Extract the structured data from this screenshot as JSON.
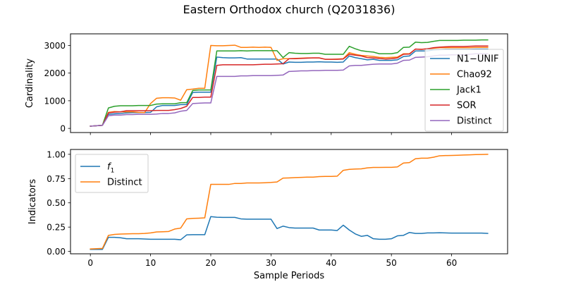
{
  "figure": {
    "title": "Eastern Orthodox church (Q2031836)"
  },
  "colors": {
    "blue": "#1f77b4",
    "orange": "#ff7f0e",
    "green": "#2ca02c",
    "red": "#d62728",
    "purple": "#9467bd"
  },
  "chart_data": [
    {
      "type": "line",
      "ylabel": "Cardinality",
      "xlabel": "",
      "xlim": [
        -3.3,
        69.3
      ],
      "ylim": [
        -150,
        3420
      ],
      "yticks": [
        0,
        1000,
        2000,
        3000
      ],
      "ytick_labels": [
        "0",
        "1000",
        "2000",
        "3000"
      ],
      "xticks": [
        0,
        10,
        20,
        30,
        40,
        50,
        60
      ],
      "show_xtick_labels": false,
      "legend_position": "right",
      "series": [
        {
          "name": "N1−UNIF",
          "color": "#1f77b4",
          "x": [
            0,
            2,
            3,
            4,
            5,
            6,
            7,
            8,
            9,
            10,
            11,
            12,
            13,
            14,
            15,
            16,
            17,
            18,
            19,
            20,
            21,
            22,
            23,
            24,
            25,
            26,
            27,
            28,
            29,
            30,
            31,
            32,
            33,
            34,
            35,
            36,
            37,
            38,
            39,
            40,
            41,
            42,
            43,
            44,
            45,
            46,
            47,
            48,
            49,
            50,
            51,
            52,
            53,
            54,
            55,
            56,
            57,
            58,
            59,
            60,
            61,
            62,
            63,
            64,
            65,
            66
          ],
          "y": [
            80,
            110,
            510,
            530,
            540,
            560,
            570,
            570,
            575,
            580,
            780,
            830,
            830,
            830,
            860,
            860,
            1300,
            1310,
            1310,
            1310,
            2580,
            2560,
            2550,
            2550,
            2560,
            2510,
            2510,
            2510,
            2510,
            2510,
            2510,
            2330,
            2400,
            2390,
            2390,
            2400,
            2400,
            2410,
            2400,
            2400,
            2390,
            2400,
            2620,
            2560,
            2520,
            2480,
            2500,
            2460,
            2460,
            2460,
            2480,
            2600,
            2620,
            2800,
            2800,
            2800,
            2840,
            2850,
            2860,
            2860,
            2860,
            2860,
            2860,
            2870,
            2870,
            2870
          ]
        },
        {
          "name": "Chao92",
          "color": "#ff7f0e",
          "x": [
            0,
            2,
            3,
            4,
            5,
            6,
            7,
            8,
            9,
            10,
            11,
            12,
            13,
            14,
            15,
            16,
            17,
            18,
            19,
            20,
            21,
            22,
            23,
            24,
            25,
            26,
            27,
            28,
            29,
            30,
            31,
            32,
            33,
            34,
            35,
            36,
            37,
            38,
            39,
            40,
            41,
            42,
            43,
            44,
            45,
            46,
            47,
            48,
            49,
            50,
            51,
            52,
            53,
            54,
            55,
            56,
            57,
            58,
            59,
            60,
            61,
            62,
            63,
            64,
            65,
            66
          ],
          "y": [
            80,
            110,
            580,
            610,
            600,
            600,
            600,
            580,
            570,
            900,
            1090,
            1110,
            1110,
            1100,
            1020,
            1400,
            1420,
            1450,
            1450,
            3000,
            2990,
            2990,
            3000,
            3010,
            2930,
            2930,
            2940,
            2930,
            2940,
            2930,
            2460,
            2520,
            2520,
            2530,
            2540,
            2550,
            2550,
            2550,
            2500,
            2500,
            2510,
            2520,
            2740,
            2680,
            2640,
            2620,
            2600,
            2570,
            2560,
            2570,
            2580,
            2700,
            2700,
            2870,
            2860,
            2880,
            2900,
            2920,
            2920,
            2920,
            2920,
            2920,
            2920,
            2930,
            2930,
            2930
          ]
        },
        {
          "name": "Jack1",
          "color": "#2ca02c",
          "x": [
            0,
            2,
            3,
            4,
            5,
            6,
            7,
            8,
            9,
            10,
            11,
            12,
            13,
            14,
            15,
            16,
            17,
            18,
            19,
            20,
            21,
            22,
            23,
            24,
            25,
            26,
            27,
            28,
            29,
            30,
            31,
            32,
            33,
            34,
            35,
            36,
            37,
            38,
            39,
            40,
            41,
            42,
            43,
            44,
            45,
            46,
            47,
            48,
            49,
            50,
            51,
            52,
            53,
            54,
            55,
            56,
            57,
            58,
            59,
            60,
            61,
            62,
            63,
            64,
            65,
            66
          ],
          "y": [
            80,
            110,
            740,
            800,
            820,
            820,
            820,
            830,
            830,
            830,
            880,
            890,
            890,
            890,
            930,
            930,
            1370,
            1390,
            1390,
            1390,
            2800,
            2800,
            2800,
            2800,
            2810,
            2800,
            2810,
            2810,
            2810,
            2810,
            2810,
            2560,
            2740,
            2720,
            2710,
            2710,
            2720,
            2720,
            2680,
            2680,
            2680,
            2680,
            2970,
            2880,
            2810,
            2780,
            2760,
            2700,
            2700,
            2700,
            2740,
            2930,
            2940,
            3120,
            3100,
            3110,
            3150,
            3180,
            3180,
            3180,
            3180,
            3190,
            3190,
            3190,
            3200,
            3200
          ]
        },
        {
          "name": "SOR",
          "color": "#d62728",
          "x": [
            0,
            2,
            3,
            4,
            5,
            6,
            7,
            8,
            9,
            10,
            11,
            12,
            13,
            14,
            15,
            16,
            17,
            18,
            19,
            20,
            21,
            22,
            23,
            24,
            25,
            26,
            27,
            28,
            29,
            30,
            31,
            32,
            33,
            34,
            35,
            36,
            37,
            38,
            39,
            40,
            41,
            42,
            43,
            44,
            45,
            46,
            47,
            48,
            49,
            50,
            51,
            52,
            53,
            54,
            55,
            56,
            57,
            58,
            59,
            60,
            61,
            62,
            63,
            64,
            65,
            66
          ],
          "y": [
            80,
            110,
            560,
            590,
            600,
            640,
            640,
            640,
            640,
            640,
            650,
            650,
            650,
            680,
            720,
            800,
            1120,
            1120,
            1130,
            1130,
            2280,
            2300,
            2300,
            2300,
            2300,
            2300,
            2300,
            2310,
            2320,
            2320,
            2330,
            2340,
            2520,
            2520,
            2530,
            2540,
            2550,
            2550,
            2500,
            2500,
            2500,
            2510,
            2680,
            2650,
            2620,
            2560,
            2550,
            2530,
            2510,
            2520,
            2550,
            2680,
            2690,
            2870,
            2860,
            2880,
            2920,
            2940,
            2950,
            2960,
            2960,
            2960,
            2970,
            2980,
            2980,
            2980
          ]
        },
        {
          "name": "Distinct",
          "color": "#9467bd",
          "x": [
            0,
            2,
            3,
            4,
            5,
            6,
            7,
            8,
            9,
            10,
            11,
            12,
            13,
            14,
            15,
            16,
            17,
            18,
            19,
            20,
            21,
            22,
            23,
            24,
            25,
            26,
            27,
            28,
            29,
            30,
            31,
            32,
            33,
            34,
            35,
            36,
            37,
            38,
            39,
            40,
            41,
            42,
            43,
            44,
            45,
            46,
            47,
            48,
            49,
            50,
            51,
            52,
            53,
            54,
            55,
            56,
            57,
            58,
            59,
            60,
            61,
            62,
            63,
            64,
            65,
            66
          ],
          "y": [
            80,
            110,
            460,
            480,
            480,
            500,
            500,
            510,
            510,
            510,
            520,
            540,
            540,
            560,
            620,
            650,
            900,
            910,
            920,
            920,
            1880,
            1880,
            1880,
            1880,
            1900,
            1900,
            1910,
            1910,
            1910,
            1910,
            1920,
            1930,
            2060,
            2070,
            2080,
            2080,
            2090,
            2090,
            2100,
            2100,
            2100,
            2110,
            2260,
            2280,
            2280,
            2300,
            2320,
            2330,
            2330,
            2330,
            2360,
            2460,
            2470,
            2570,
            2580,
            2590,
            2620,
            2650,
            2650,
            2660,
            2660,
            2660,
            2680,
            2700,
            2700,
            2700
          ]
        }
      ]
    },
    {
      "type": "line",
      "ylabel": "Indicators",
      "xlabel": "Sample Periods",
      "xlim": [
        -3.3,
        69.3
      ],
      "ylim": [
        -0.025,
        1.05
      ],
      "yticks": [
        0,
        0.25,
        0.5,
        0.75,
        1.0
      ],
      "ytick_labels": [
        "0.00",
        "0.25",
        "0.50",
        "0.75",
        "1.00"
      ],
      "xticks": [
        0,
        10,
        20,
        30,
        40,
        50,
        60
      ],
      "xtick_labels": [
        "0",
        "10",
        "20",
        "30",
        "40",
        "50",
        "60"
      ],
      "legend_position": "upper left",
      "series": [
        {
          "name": "f1",
          "name_main": "f",
          "name_sub": "1",
          "color": "#1f77b4",
          "x": [
            0,
            2,
            3,
            4,
            5,
            6,
            7,
            8,
            9,
            10,
            11,
            12,
            13,
            14,
            15,
            16,
            17,
            18,
            19,
            20,
            21,
            22,
            23,
            24,
            25,
            26,
            27,
            28,
            29,
            30,
            31,
            32,
            33,
            34,
            35,
            36,
            37,
            38,
            39,
            40,
            41,
            42,
            43,
            44,
            45,
            46,
            47,
            48,
            49,
            50,
            51,
            52,
            53,
            54,
            55,
            56,
            57,
            58,
            59,
            60,
            61,
            62,
            63,
            64,
            65,
            66
          ],
          "y": [
            0.02,
            0.02,
            0.145,
            0.145,
            0.14,
            0.13,
            0.13,
            0.13,
            0.128,
            0.125,
            0.125,
            0.125,
            0.125,
            0.125,
            0.12,
            0.17,
            0.172,
            0.172,
            0.172,
            0.358,
            0.352,
            0.35,
            0.35,
            0.35,
            0.335,
            0.332,
            0.332,
            0.332,
            0.332,
            0.332,
            0.235,
            0.26,
            0.245,
            0.24,
            0.24,
            0.24,
            0.24,
            0.22,
            0.22,
            0.22,
            0.215,
            0.27,
            0.22,
            0.18,
            0.155,
            0.165,
            0.13,
            0.125,
            0.125,
            0.13,
            0.16,
            0.165,
            0.195,
            0.185,
            0.185,
            0.19,
            0.19,
            0.192,
            0.19,
            0.188,
            0.188,
            0.188,
            0.188,
            0.188,
            0.188,
            0.185
          ]
        },
        {
          "name": "Distinct",
          "color": "#ff7f0e",
          "x": [
            0,
            2,
            3,
            4,
            5,
            6,
            7,
            8,
            9,
            10,
            11,
            12,
            13,
            14,
            15,
            16,
            17,
            18,
            19,
            20,
            21,
            22,
            23,
            24,
            25,
            26,
            27,
            28,
            29,
            30,
            31,
            32,
            33,
            34,
            35,
            36,
            37,
            38,
            39,
            40,
            41,
            42,
            43,
            44,
            45,
            46,
            47,
            48,
            49,
            50,
            51,
            52,
            53,
            54,
            55,
            56,
            57,
            58,
            59,
            60,
            61,
            62,
            63,
            64,
            65,
            66
          ],
          "y": [
            0.025,
            0.03,
            0.165,
            0.175,
            0.178,
            0.18,
            0.182,
            0.182,
            0.185,
            0.19,
            0.2,
            0.202,
            0.205,
            0.23,
            0.24,
            0.335,
            0.34,
            0.342,
            0.345,
            0.69,
            0.69,
            0.69,
            0.69,
            0.7,
            0.7,
            0.705,
            0.705,
            0.705,
            0.707,
            0.71,
            0.715,
            0.755,
            0.757,
            0.76,
            0.762,
            0.765,
            0.765,
            0.77,
            0.772,
            0.772,
            0.775,
            0.835,
            0.845,
            0.848,
            0.85,
            0.86,
            0.865,
            0.865,
            0.866,
            0.866,
            0.87,
            0.91,
            0.915,
            0.955,
            0.96,
            0.96,
            0.97,
            0.985,
            0.987,
            0.988,
            0.99,
            0.993,
            0.995,
            0.997,
            0.998,
            1.0
          ]
        }
      ]
    }
  ]
}
